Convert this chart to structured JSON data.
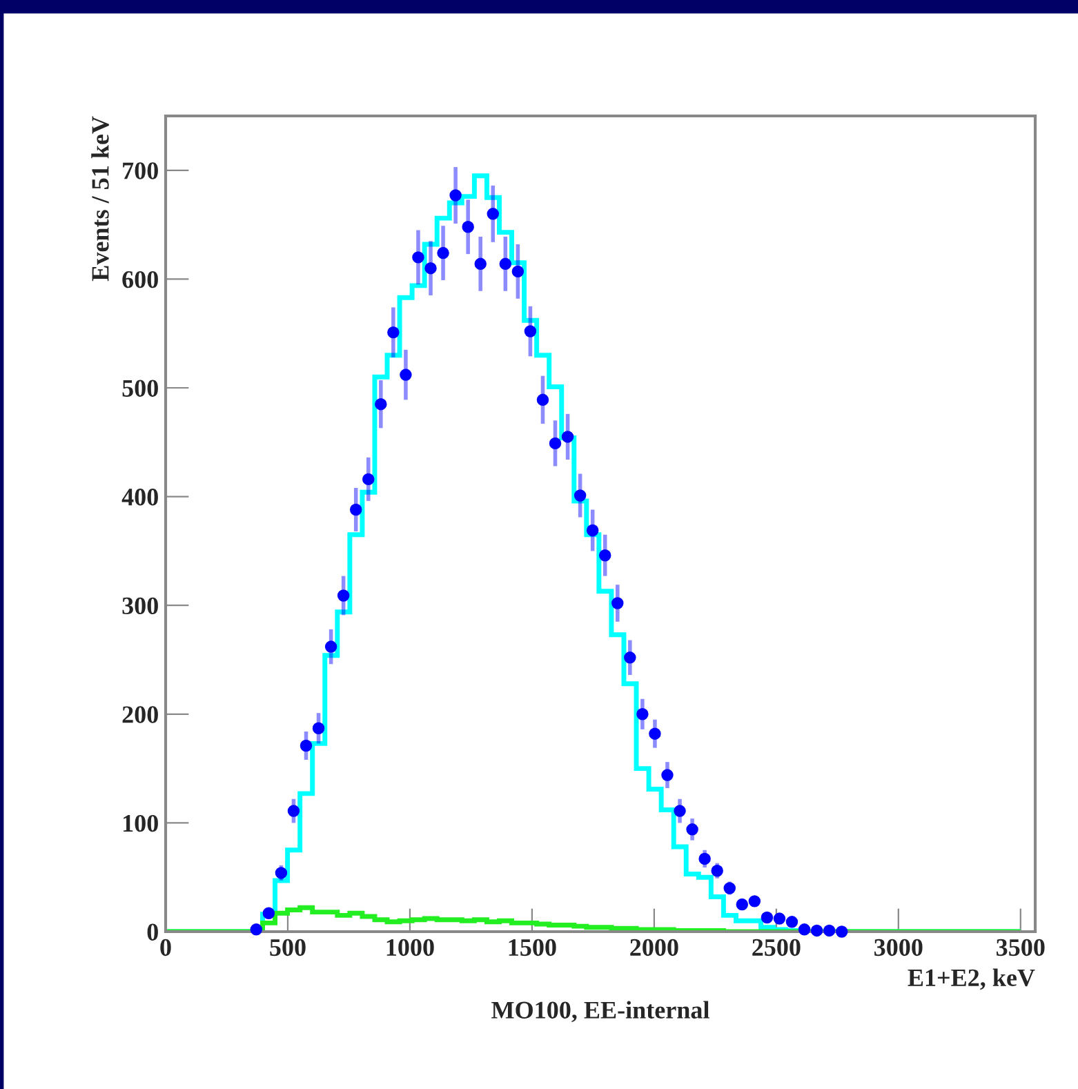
{
  "chart_data": {
    "type": "scatter",
    "xlabel": "E1+E2, keV",
    "ylabel": "Events / 51 keV",
    "annotations": [
      "MO100, EE-internal"
    ],
    "xlim": [
      0,
      3560
    ],
    "xticks": [
      0,
      500,
      1000,
      1500,
      2000,
      2500,
      3000,
      3500
    ],
    "ylim": [
      0,
      750
    ],
    "yticks": [
      0,
      100,
      200,
      300,
      400,
      500,
      600,
      700
    ],
    "grid": false,
    "series": [
      {
        "type": "histogram",
        "color": "#00ffff",
        "bins": [
          0,
          397,
          448,
          499,
          550,
          601,
          652,
          703,
          754,
          805,
          856,
          907,
          958,
          1009,
          1060,
          1111,
          1162,
          1213,
          1264,
          1315,
          1366,
          1417,
          1468,
          1519,
          1570,
          1621,
          1672,
          1723,
          1774,
          1825,
          1876,
          1927,
          1978,
          2029,
          2080,
          2131,
          2182,
          2233,
          2284,
          2335,
          2386,
          2437,
          2488,
          2539,
          2590,
          3500
        ],
        "values": [
          0,
          16,
          47,
          75,
          127,
          173,
          254,
          294,
          365,
          404,
          510,
          530,
          583,
          594,
          632,
          656,
          670,
          676,
          695,
          675,
          643,
          615,
          562,
          530,
          501,
          454,
          396,
          365,
          313,
          273,
          228,
          150,
          131,
          112,
          78,
          53,
          50,
          32,
          15,
          10,
          10,
          4,
          2,
          1,
          0
        ]
      },
      {
        "type": "histogram",
        "color": "#22ee22",
        "bins": [
          0,
          397,
          448,
          499,
          550,
          601,
          652,
          703,
          754,
          805,
          856,
          907,
          958,
          1009,
          1060,
          1111,
          1162,
          1213,
          1264,
          1315,
          1366,
          1417,
          1468,
          1519,
          1570,
          1621,
          1672,
          1723,
          1774,
          1825,
          1876,
          1927,
          1978,
          2029,
          2080,
          2131,
          2182,
          2233,
          2284,
          2335,
          2386,
          2437,
          2488,
          2539,
          2590,
          3500
        ],
        "values": [
          0,
          8,
          17,
          20,
          22,
          18,
          18,
          15,
          17,
          14,
          11,
          9,
          10,
          11,
          12,
          11,
          11,
          10,
          11,
          9,
          10,
          8,
          8,
          7,
          6,
          6,
          5,
          4,
          4,
          3,
          3,
          2,
          2,
          2,
          1,
          1,
          1,
          1,
          0,
          0,
          0,
          0,
          0,
          0,
          0
        ]
      },
      {
        "color": "#0000ff",
        "marker": "circle",
        "x": [
          371,
          422,
          473,
          524,
          575,
          626,
          677,
          728,
          779,
          830,
          881,
          932,
          983,
          1034,
          1085,
          1136,
          1187,
          1238,
          1289,
          1340,
          1391,
          1442,
          1493,
          1544,
          1595,
          1646,
          1697,
          1748,
          1799,
          1850,
          1901,
          1952,
          2003,
          2054,
          2105,
          2156,
          2207,
          2258,
          2309,
          2360,
          2411,
          2462,
          2513,
          2564,
          2615,
          2666,
          2717,
          2768
        ],
        "values": [
          2,
          17,
          54,
          111,
          171,
          187,
          262,
          309,
          388,
          416,
          485,
          551,
          512,
          620,
          610,
          624,
          677,
          648,
          614,
          660,
          614,
          607,
          552,
          489,
          449,
          455,
          401,
          369,
          346,
          302,
          252,
          200,
          182,
          144,
          111,
          94,
          67,
          56,
          40,
          25,
          28,
          13,
          12,
          9,
          2,
          1,
          1,
          0
        ],
        "errors": [
          null,
          4,
          7,
          11,
          13,
          14,
          16,
          18,
          20,
          20,
          22,
          23,
          23,
          25,
          25,
          25,
          26,
          25,
          25,
          26,
          25,
          25,
          23,
          22,
          21,
          21,
          20,
          19,
          19,
          17,
          16,
          14,
          13,
          12,
          11,
          10,
          8,
          7,
          6,
          5,
          5,
          4,
          3,
          3,
          null,
          null,
          null,
          null
        ]
      }
    ]
  }
}
